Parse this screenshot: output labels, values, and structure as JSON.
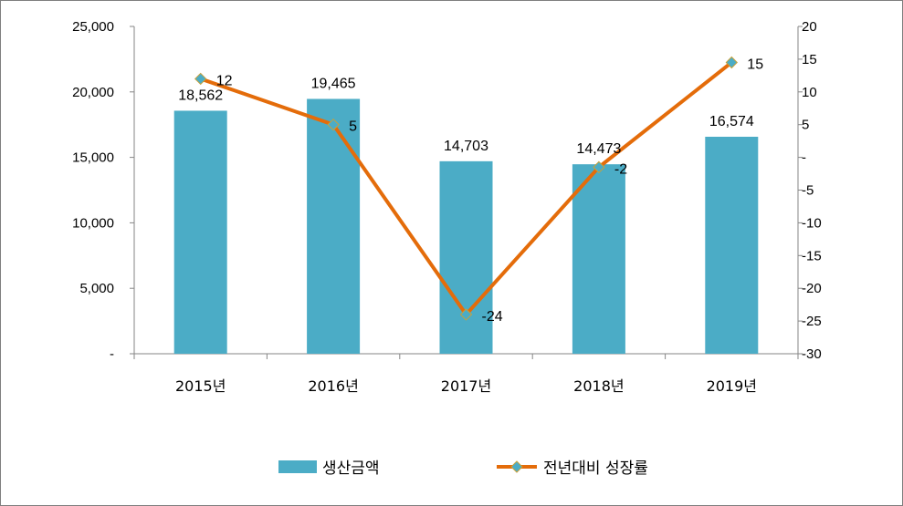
{
  "chart_data": {
    "type": "bar+line",
    "categories": [
      "2015년",
      "2016년",
      "2017년",
      "2018년",
      "2019년"
    ],
    "series": [
      {
        "name": "생산금액",
        "type": "bar",
        "axis": "left",
        "color": "#4bacc6",
        "values": [
          18562,
          19465,
          14703,
          14473,
          16574
        ],
        "labels": [
          "18,562",
          "19,465",
          "14,703",
          "14,473",
          "16,574"
        ]
      },
      {
        "name": "전년대비 성장률",
        "type": "line",
        "axis": "right",
        "color": "#e46c0a",
        "marker_color": "#4bacc6",
        "values": [
          12,
          5,
          -24,
          -1.5,
          14.5
        ],
        "labels": [
          "12",
          "5",
          "-24",
          "-2",
          "15"
        ]
      }
    ],
    "y_left": {
      "ylim": [
        0,
        25000
      ],
      "ticks": [
        0,
        5000,
        10000,
        15000,
        20000,
        25000
      ],
      "tick_labels": [
        "-",
        "5,000",
        "10,000",
        "15,000",
        "20,000",
        "25,000"
      ]
    },
    "y_right": {
      "ylim": [
        -30,
        20
      ],
      "ticks": [
        20,
        15,
        10,
        5,
        0,
        -5,
        -10,
        -15,
        -20,
        -25,
        -30
      ],
      "tick_labels": [
        "20",
        "15",
        "10",
        "5",
        "-",
        "-5",
        "-10",
        "-15",
        "-20",
        "-25",
        "-30"
      ]
    },
    "grid": false,
    "legend_position": "bottom"
  }
}
